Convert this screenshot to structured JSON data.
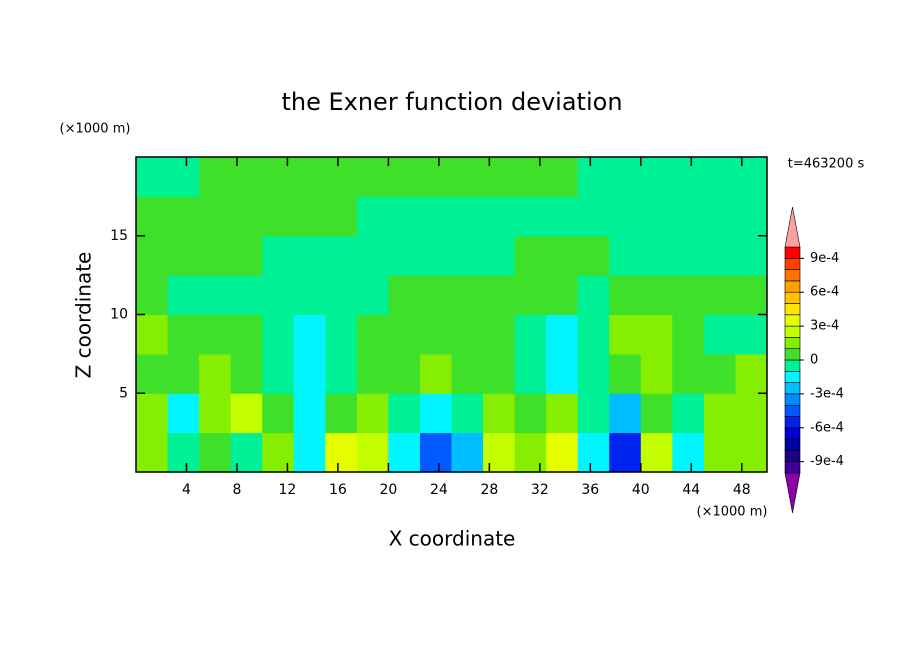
{
  "chart_data": {
    "type": "contour",
    "title": "the Exner function deviation",
    "xlabel": "X coordinate",
    "ylabel": "Z coordinate",
    "x_unit_label": "(×1000 m)",
    "y_unit_label": "(×1000 m)",
    "time_label": "t=463200 s",
    "xlim": [
      0,
      50
    ],
    "ylim": [
      0,
      20
    ],
    "xticks": [
      4,
      8,
      12,
      16,
      20,
      24,
      28,
      32,
      36,
      40,
      44,
      48
    ],
    "yticks": [
      5,
      10,
      15
    ],
    "x": [
      1.25,
      3.75,
      6.25,
      8.75,
      11.25,
      13.75,
      16.25,
      18.75,
      21.25,
      23.75,
      26.25,
      28.75,
      31.25,
      33.75,
      36.25,
      38.75,
      41.25,
      43.75,
      46.25,
      48.75
    ],
    "y": [
      1.25,
      3.75,
      6.25,
      8.75,
      11.25,
      13.75,
      16.25,
      18.75
    ],
    "z": [
      [
        0.00015,
        -5e-05,
        5e-05,
        -5e-05,
        0.00015,
        -0.00015,
        0.00035,
        0.00025,
        -0.00015,
        -0.00045,
        -0.00025,
        0.00025,
        0.00015,
        0.00035,
        -0.00015,
        -0.00055,
        0.00025,
        -0.00015,
        0.00015,
        0.00015
      ],
      [
        0.00015,
        -0.00015,
        0.00015,
        0.00025,
        5e-05,
        -0.00015,
        5e-05,
        0.00015,
        -5e-05,
        -0.00015,
        -5e-05,
        0.00015,
        5e-05,
        0.00015,
        -5e-05,
        -0.00025,
        5e-05,
        -5e-05,
        0.00015,
        0.00015
      ],
      [
        5e-05,
        5e-05,
        0.00015,
        5e-05,
        -5e-05,
        -0.00015,
        -5e-05,
        5e-05,
        5e-05,
        0.00015,
        5e-05,
        5e-05,
        -5e-05,
        -0.00015,
        -5e-05,
        5e-05,
        0.00015,
        5e-05,
        5e-05,
        0.00015
      ],
      [
        0.00015,
        5e-05,
        5e-05,
        5e-05,
        -5e-05,
        -0.00015,
        -5e-05,
        5e-05,
        5e-05,
        5e-05,
        5e-05,
        5e-05,
        -5e-05,
        -0.00015,
        -5e-05,
        0.00015,
        0.00015,
        5e-05,
        -5e-05,
        -5e-05
      ],
      [
        5e-05,
        -5e-05,
        -5e-05,
        -5e-05,
        -5e-05,
        -5e-05,
        -5e-05,
        -5e-05,
        5e-05,
        5e-05,
        5e-05,
        5e-05,
        5e-05,
        5e-05,
        -5e-05,
        5e-05,
        5e-05,
        5e-05,
        5e-05,
        5e-05
      ],
      [
        5e-05,
        5e-05,
        5e-05,
        5e-05,
        -5e-05,
        -5e-05,
        -5e-05,
        -5e-05,
        -5e-05,
        -5e-05,
        -5e-05,
        -5e-05,
        5e-05,
        5e-05,
        5e-05,
        -5e-05,
        -5e-05,
        -5e-05,
        -5e-05,
        -5e-05
      ],
      [
        5e-05,
        5e-05,
        5e-05,
        5e-05,
        5e-05,
        5e-05,
        5e-05,
        -5e-05,
        -5e-05,
        -5e-05,
        -5e-05,
        -5e-05,
        -5e-05,
        -5e-05,
        -5e-05,
        -5e-05,
        -5e-05,
        -5e-05,
        -5e-05,
        -5e-05
      ],
      [
        -5e-05,
        -5e-05,
        5e-05,
        5e-05,
        5e-05,
        5e-05,
        5e-05,
        5e-05,
        5e-05,
        5e-05,
        5e-05,
        5e-05,
        5e-05,
        5e-05,
        -5e-05,
        -5e-05,
        -5e-05,
        -5e-05,
        -5e-05,
        -5e-05
      ]
    ],
    "levels": [
      -0.001,
      -0.0009,
      -0.0008,
      -0.0007,
      -0.0006,
      -0.0005,
      -0.0004,
      -0.0003,
      -0.0002,
      -0.0001,
      0,
      0.0001,
      0.0002,
      0.0003,
      0.0004,
      0.0005,
      0.0006,
      0.0007,
      0.0008,
      0.0009,
      0.001
    ],
    "colors": [
      "#3c0096",
      "#1e0082",
      "#0000a0",
      "#0000d2",
      "#0023f0",
      "#005aff",
      "#008cff",
      "#00beff",
      "#00f5ff",
      "#00f096",
      "#3ee02a",
      "#86ee00",
      "#c3ff00",
      "#e6ff00",
      "#ffe600",
      "#ffc300",
      "#ffa000",
      "#ff7300",
      "#ff4100",
      "#ff0000"
    ],
    "under_color": "#8c00a8",
    "over_color": "#ffa0a0",
    "colorbar_ticks": [
      {
        "value": -0.0009,
        "label": "-9e-4"
      },
      {
        "value": -0.0006,
        "label": "-6e-4"
      },
      {
        "value": -0.0003,
        "label": "-3e-4"
      },
      0,
      {
        "value": 0.0003,
        "label": "3e-4"
      },
      {
        "value": 0.0006,
        "label": "6e-4"
      },
      {
        "value": 0.0009,
        "label": "9e-4"
      }
    ]
  }
}
